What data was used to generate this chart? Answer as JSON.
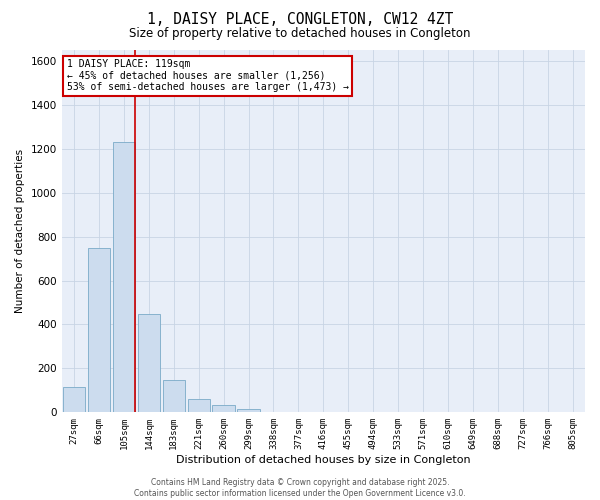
{
  "title": "1, DAISY PLACE, CONGLETON, CW12 4ZT",
  "subtitle": "Size of property relative to detached houses in Congleton",
  "xlabel": "Distribution of detached houses by size in Congleton",
  "ylabel": "Number of detached properties",
  "categories": [
    "27sqm",
    "66sqm",
    "105sqm",
    "144sqm",
    "183sqm",
    "221sqm",
    "260sqm",
    "299sqm",
    "338sqm",
    "377sqm",
    "416sqm",
    "455sqm",
    "494sqm",
    "533sqm",
    "571sqm",
    "610sqm",
    "649sqm",
    "688sqm",
    "727sqm",
    "766sqm",
    "805sqm"
  ],
  "values": [
    115,
    750,
    1230,
    450,
    145,
    60,
    35,
    15,
    0,
    0,
    0,
    0,
    0,
    0,
    0,
    0,
    0,
    0,
    0,
    0,
    0
  ],
  "bar_color": "#ccdcee",
  "bar_edge_color": "#7aaac8",
  "vline_color": "#cc0000",
  "ylim": [
    0,
    1650
  ],
  "yticks": [
    0,
    200,
    400,
    600,
    800,
    1000,
    1200,
    1400,
    1600
  ],
  "annotation_title": "1 DAISY PLACE: 119sqm",
  "annotation_line1": "← 45% of detached houses are smaller (1,256)",
  "annotation_line2": "53% of semi-detached houses are larger (1,473) →",
  "annotation_box_color": "#cc0000",
  "grid_color": "#c8d4e4",
  "bg_color": "#e8eef8",
  "footer1": "Contains HM Land Registry data © Crown copyright and database right 2025.",
  "footer2": "Contains public sector information licensed under the Open Government Licence v3.0."
}
